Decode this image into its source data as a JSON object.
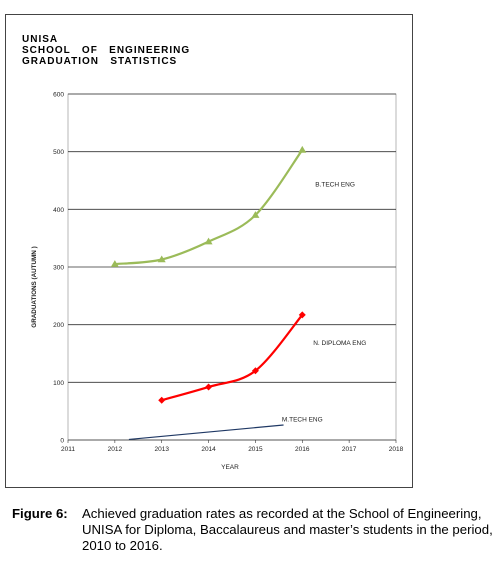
{
  "figure": {
    "title_lines": [
      "UNISA",
      "SCHOOL   OF   ENGINEERING",
      "GRADUATION   STATISTICS"
    ],
    "caption_label": "Figure 6:",
    "caption_text": "Achieved graduation rates as recorded at the School of Engineering, UNISA for Diploma, Baccalaureus and master’s students in the period, 2010 to 2016."
  },
  "chart_data": {
    "type": "line",
    "title": "UNISA SCHOOL OF ENGINEERING GRADUATION STATISTICS",
    "xlabel": "YEAR",
    "ylabel": "GRADUATIONS (AUTUMN )",
    "xlim": [
      2011,
      2018
    ],
    "ylim": [
      0,
      600
    ],
    "xticks": [
      "2011",
      "2012",
      "2013",
      "2014",
      "2015",
      "2016",
      "2017",
      "2018"
    ],
    "yticks": [
      "0",
      "100",
      "200",
      "300",
      "400",
      "500",
      "600"
    ],
    "grid": true,
    "series": [
      {
        "name": "B.TECH  ENG",
        "color": "#9bbb59",
        "marker": "triangle",
        "x": [
          2012,
          2013,
          2014,
          2015,
          2016
        ],
        "y": [
          305,
          313,
          344,
          390,
          503
        ]
      },
      {
        "name": "N. DIPLOMA   ENG",
        "color": "#ff0000",
        "marker": "diamond",
        "x": [
          2013,
          2014,
          2015,
          2016
        ],
        "y": [
          69,
          92,
          120,
          217
        ]
      },
      {
        "name": "M.TECH  ENG",
        "color": "#1f3864",
        "marker": "none",
        "x": [
          2012.3,
          2015.6
        ],
        "y": [
          1,
          26
        ]
      }
    ]
  }
}
